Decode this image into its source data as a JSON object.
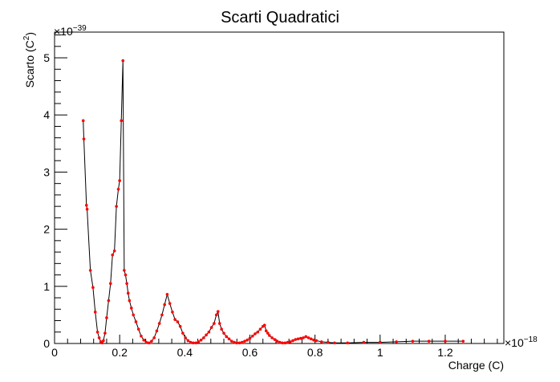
{
  "chart_data": {
    "type": "line",
    "title": "Scarti Quadratici",
    "xlabel": "Charge (C)",
    "ylabel": "Scarto (C",
    "ylabel_sup": "2",
    "ylabel_suffix": ")",
    "x_exponent": "×10",
    "x_exponent_power": "−18",
    "y_exponent": "×10",
    "y_exponent_power": "−39",
    "xlim": [
      0,
      1.38
    ],
    "ylim": [
      0,
      5.45
    ],
    "x_ticks": [
      0,
      0.2,
      0.4,
      0.6,
      0.8,
      1,
      1.2
    ],
    "x_tick_labels": [
      "0",
      "0.2",
      "0.4",
      "0.6",
      "0.8",
      "1",
      "1.2"
    ],
    "y_ticks": [
      0,
      1,
      2,
      3,
      4,
      5
    ],
    "y_tick_labels": [
      "0",
      "1",
      "2",
      "3",
      "4",
      "5"
    ],
    "line_color": "#000000",
    "marker_color": "#ff0000",
    "grid": false,
    "series": [
      {
        "x": [
          0.088,
          0.09,
          0.098,
          0.1,
          0.11,
          0.118,
          0.125,
          0.132,
          0.137,
          0.142,
          0.146,
          0.15,
          0.155,
          0.16,
          0.166,
          0.172,
          0.178,
          0.184,
          0.19,
          0.196,
          0.2,
          0.205,
          0.21,
          0.214,
          0.218,
          0.222,
          0.226,
          0.23,
          0.236,
          0.242,
          0.25,
          0.258,
          0.266,
          0.274,
          0.282,
          0.29,
          0.298,
          0.306,
          0.314,
          0.322,
          0.33,
          0.338,
          0.346,
          0.354,
          0.362,
          0.37,
          0.378,
          0.386,
          0.394,
          0.402,
          0.41,
          0.418,
          0.426,
          0.434,
          0.442,
          0.45,
          0.458,
          0.466,
          0.474,
          0.482,
          0.49,
          0.497,
          0.502,
          0.507,
          0.513,
          0.52,
          0.528,
          0.536,
          0.544,
          0.552,
          0.56,
          0.568,
          0.576,
          0.584,
          0.592,
          0.6,
          0.608,
          0.616,
          0.624,
          0.632,
          0.64,
          0.645,
          0.65,
          0.655,
          0.66,
          0.668,
          0.676,
          0.684,
          0.692,
          0.7,
          0.708,
          0.716,
          0.724,
          0.732,
          0.74,
          0.748,
          0.756,
          0.764,
          0.772,
          0.78,
          0.788,
          0.796,
          0.804,
          0.82,
          0.84,
          0.86,
          0.9,
          0.95,
          1.0,
          1.05,
          1.1,
          1.15,
          1.2,
          1.255
        ],
        "y": [
          3.9,
          3.58,
          2.42,
          2.35,
          1.28,
          0.98,
          0.55,
          0.2,
          0.1,
          0.03,
          0.01,
          0.05,
          0.18,
          0.45,
          0.75,
          1.05,
          1.55,
          1.62,
          2.4,
          2.7,
          2.85,
          3.9,
          4.95,
          1.28,
          1.2,
          1.05,
          0.88,
          0.75,
          0.62,
          0.5,
          0.38,
          0.25,
          0.13,
          0.06,
          0.02,
          0.01,
          0.04,
          0.1,
          0.22,
          0.35,
          0.5,
          0.68,
          0.86,
          0.7,
          0.55,
          0.42,
          0.38,
          0.3,
          0.18,
          0.1,
          0.05,
          0.02,
          0.01,
          0.01,
          0.03,
          0.06,
          0.1,
          0.15,
          0.2,
          0.28,
          0.35,
          0.5,
          0.56,
          0.35,
          0.25,
          0.18,
          0.12,
          0.08,
          0.04,
          0.02,
          0.01,
          0.01,
          0.02,
          0.04,
          0.06,
          0.09,
          0.13,
          0.17,
          0.2,
          0.25,
          0.3,
          0.32,
          0.22,
          0.18,
          0.14,
          0.1,
          0.07,
          0.04,
          0.02,
          0.01,
          0.01,
          0.02,
          0.03,
          0.05,
          0.07,
          0.08,
          0.09,
          0.1,
          0.12,
          0.1,
          0.08,
          0.06,
          0.05,
          0.03,
          0.02,
          0.01,
          0.01,
          0.02,
          0.02,
          0.03,
          0.04,
          0.04,
          0.04,
          0.04
        ]
      }
    ]
  }
}
